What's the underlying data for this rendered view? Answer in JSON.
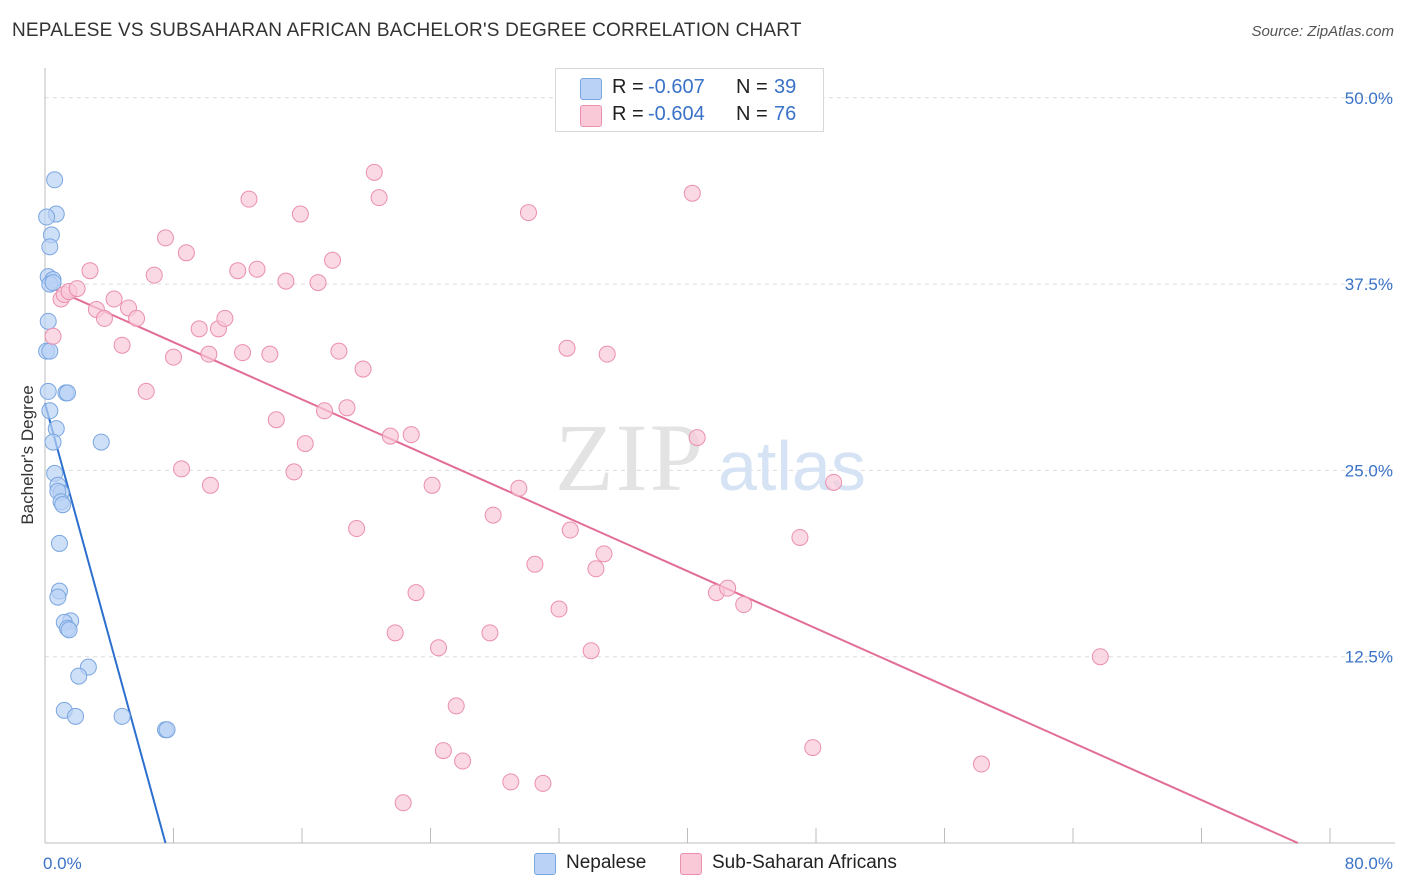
{
  "header": {
    "title": "NEPALESE VS SUBSAHARAN AFRICAN BACHELOR'S DEGREE CORRELATION CHART",
    "source": "Source: ZipAtlas.com"
  },
  "watermark": {
    "zip": "ZIP",
    "atlas": "atlas"
  },
  "legend_top": [
    {
      "swatch_color": "#b9d2f5",
      "r_label": "R =",
      "r_value": "-0.607",
      "n_label": "N =",
      "n_value": "39"
    },
    {
      "swatch_color": "#fac9d8",
      "r_label": "R =",
      "r_value": "-0.604",
      "n_label": "N =",
      "n_value": "76"
    }
  ],
  "legend_bottom": [
    {
      "label": "Nepalese",
      "swatch_color": "#b9d2f5"
    },
    {
      "label": "Sub-Saharan Africans",
      "swatch_color": "#fac9d8"
    }
  ],
  "chart_data": {
    "type": "scatter",
    "title": "NEPALESE VS SUBSAHARAN AFRICAN BACHELOR'S DEGREE CORRELATION CHART",
    "xlabel": "",
    "ylabel": "Bachelor's Degree",
    "xlim": [
      0,
      80
    ],
    "ylim": [
      0,
      52
    ],
    "x_tick_labels": [
      {
        "value": 0,
        "label": "0.0%"
      },
      {
        "value": 80,
        "label": "80.0%"
      }
    ],
    "y_tick_labels": [
      {
        "value": 12.5,
        "label": "12.5%"
      },
      {
        "value": 25,
        "label": "25.0%"
      },
      {
        "value": 37.5,
        "label": "37.5%"
      },
      {
        "value": 50,
        "label": "50.0%"
      }
    ],
    "grid": "horizontal dashed",
    "series": [
      {
        "name": "Nepalese",
        "color": "#7aa6e0",
        "fill": "#b9d2f5",
        "line_color": "#2c6fcf",
        "trend": {
          "x": [
            0.0,
            7.5
          ],
          "y": [
            29.5,
            0.0
          ]
        },
        "points": [
          [
            0.6,
            44.5
          ],
          [
            0.7,
            42.2
          ],
          [
            0.1,
            42.0
          ],
          [
            0.4,
            40.8
          ],
          [
            0.3,
            40.0
          ],
          [
            0.2,
            38.0
          ],
          [
            0.5,
            37.8
          ],
          [
            0.3,
            37.5
          ],
          [
            0.5,
            37.6
          ],
          [
            0.2,
            35.0
          ],
          [
            0.1,
            33.0
          ],
          [
            1.3,
            30.2
          ],
          [
            1.4,
            30.2
          ],
          [
            0.2,
            30.3
          ],
          [
            0.3,
            29.0
          ],
          [
            0.7,
            27.8
          ],
          [
            0.5,
            26.9
          ],
          [
            3.5,
            26.9
          ],
          [
            0.6,
            24.8
          ],
          [
            0.8,
            24.0
          ],
          [
            1.0,
            23.5
          ],
          [
            0.8,
            23.6
          ],
          [
            1.0,
            22.9
          ],
          [
            1.1,
            22.7
          ],
          [
            0.9,
            20.1
          ],
          [
            0.9,
            16.9
          ],
          [
            0.8,
            16.5
          ],
          [
            1.6,
            14.9
          ],
          [
            1.2,
            14.8
          ],
          [
            1.4,
            14.4
          ],
          [
            1.5,
            14.3
          ],
          [
            2.7,
            11.8
          ],
          [
            2.1,
            11.2
          ],
          [
            1.2,
            8.9
          ],
          [
            1.9,
            8.5
          ],
          [
            4.8,
            8.5
          ],
          [
            7.5,
            7.6
          ],
          [
            7.6,
            7.6
          ],
          [
            0.3,
            33.0
          ]
        ]
      },
      {
        "name": "Sub-Saharan Africans",
        "color": "#ea8fae",
        "fill": "#fac9d8",
        "line_color": "#e26d98",
        "trend": {
          "x": [
            0.5,
            78.0
          ],
          "y": [
            37.2,
            0.0
          ]
        },
        "points": [
          [
            0.5,
            34.0
          ],
          [
            1.0,
            36.5
          ],
          [
            1.2,
            36.8
          ],
          [
            1.5,
            37.0
          ],
          [
            2.0,
            37.2
          ],
          [
            2.8,
            38.4
          ],
          [
            3.2,
            35.8
          ],
          [
            3.7,
            35.2
          ],
          [
            4.3,
            36.5
          ],
          [
            4.8,
            33.4
          ],
          [
            5.2,
            35.9
          ],
          [
            5.7,
            35.2
          ],
          [
            6.3,
            30.3
          ],
          [
            6.8,
            38.1
          ],
          [
            7.5,
            40.6
          ],
          [
            8.0,
            32.6
          ],
          [
            8.5,
            25.1
          ],
          [
            8.8,
            39.6
          ],
          [
            9.6,
            34.5
          ],
          [
            10.2,
            32.8
          ],
          [
            10.3,
            24.0
          ],
          [
            10.8,
            34.5
          ],
          [
            11.2,
            35.2
          ],
          [
            12.0,
            38.4
          ],
          [
            12.3,
            32.9
          ],
          [
            12.7,
            43.2
          ],
          [
            13.2,
            38.5
          ],
          [
            14.0,
            32.8
          ],
          [
            14.4,
            28.4
          ],
          [
            15.0,
            37.7
          ],
          [
            15.5,
            24.9
          ],
          [
            15.9,
            42.2
          ],
          [
            16.2,
            26.8
          ],
          [
            17.0,
            37.6
          ],
          [
            17.4,
            29.0
          ],
          [
            17.9,
            39.1
          ],
          [
            18.3,
            33.0
          ],
          [
            18.8,
            29.2
          ],
          [
            19.4,
            21.1
          ],
          [
            19.8,
            31.8
          ],
          [
            20.5,
            45.0
          ],
          [
            20.8,
            43.3
          ],
          [
            21.5,
            27.3
          ],
          [
            21.8,
            14.1
          ],
          [
            22.3,
            2.7
          ],
          [
            22.8,
            27.4
          ],
          [
            23.1,
            16.8
          ],
          [
            24.1,
            24.0
          ],
          [
            24.5,
            13.1
          ],
          [
            24.8,
            6.2
          ],
          [
            25.6,
            9.2
          ],
          [
            26.0,
            5.5
          ],
          [
            27.7,
            14.1
          ],
          [
            27.9,
            22.0
          ],
          [
            29.0,
            4.1
          ],
          [
            29.5,
            23.8
          ],
          [
            30.1,
            42.3
          ],
          [
            30.5,
            18.7
          ],
          [
            31.0,
            4.0
          ],
          [
            32.0,
            15.7
          ],
          [
            32.5,
            33.2
          ],
          [
            32.7,
            21.0
          ],
          [
            34.0,
            12.9
          ],
          [
            34.3,
            18.4
          ],
          [
            34.8,
            19.4
          ],
          [
            35.0,
            32.8
          ],
          [
            40.3,
            43.6
          ],
          [
            40.6,
            27.2
          ],
          [
            41.8,
            16.8
          ],
          [
            42.5,
            17.1
          ],
          [
            43.5,
            16.0
          ],
          [
            47.0,
            20.5
          ],
          [
            47.8,
            6.4
          ],
          [
            49.1,
            24.2
          ],
          [
            58.3,
            5.3
          ],
          [
            65.7,
            12.5
          ]
        ]
      }
    ]
  }
}
